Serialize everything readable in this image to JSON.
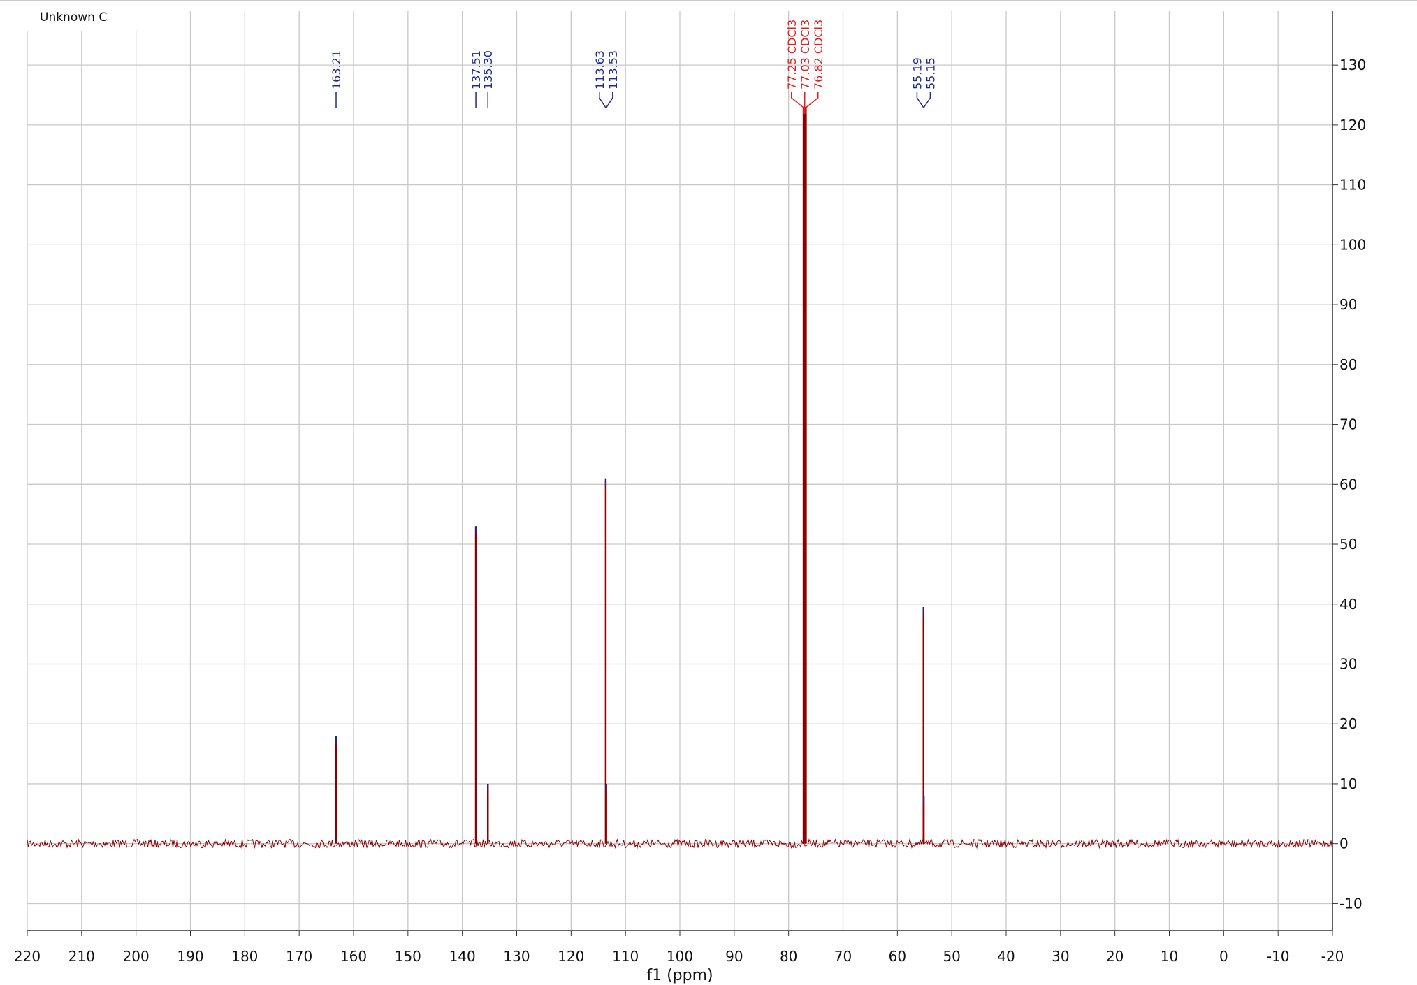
{
  "chart_data": {
    "type": "spectrum",
    "title": "Unknown C",
    "x_label": "f1 (ppm)",
    "xlim": [
      220,
      -20
    ],
    "ylim": [
      -14.5,
      139
    ],
    "xticks": [
      220,
      210,
      200,
      190,
      180,
      170,
      160,
      150,
      140,
      130,
      120,
      110,
      100,
      90,
      80,
      70,
      60,
      50,
      40,
      30,
      20,
      10,
      0,
      -10,
      -20
    ],
    "yticks": [
      -10,
      0,
      10,
      20,
      30,
      40,
      50,
      60,
      70,
      80,
      90,
      100,
      110,
      120,
      130
    ],
    "grid": true,
    "line_color": "#8b0000",
    "peaks": [
      {
        "x": 163.21,
        "height": 18,
        "label": "163.21",
        "color": "#1f2a8a"
      },
      {
        "x": 137.51,
        "height": 53,
        "label": "137.51",
        "color": "#1f2a8a"
      },
      {
        "x": 135.3,
        "height": 10,
        "label": "135.30",
        "color": "#1f2a8a"
      },
      {
        "x": 113.63,
        "height": 61,
        "label": "113.63",
        "color": "#1f2a8a"
      },
      {
        "x": 113.53,
        "height": 10,
        "label": "113.53",
        "color": "#1f2a8a"
      },
      {
        "x": 77.25,
        "height": 123,
        "label": "77.25 CDCl3",
        "color": "#e02020"
      },
      {
        "x": 77.03,
        "height": 123,
        "label": "77.03 CDCl3",
        "color": "#e02020"
      },
      {
        "x": 76.82,
        "height": 123,
        "label": "76.82 CDCl3",
        "color": "#e02020"
      },
      {
        "x": 55.19,
        "height": 39.5,
        "label": "55.19",
        "color": "#1f2a8a"
      },
      {
        "x": 55.15,
        "height": 8,
        "label": "55.15",
        "color": "#1f2a8a"
      }
    ]
  }
}
